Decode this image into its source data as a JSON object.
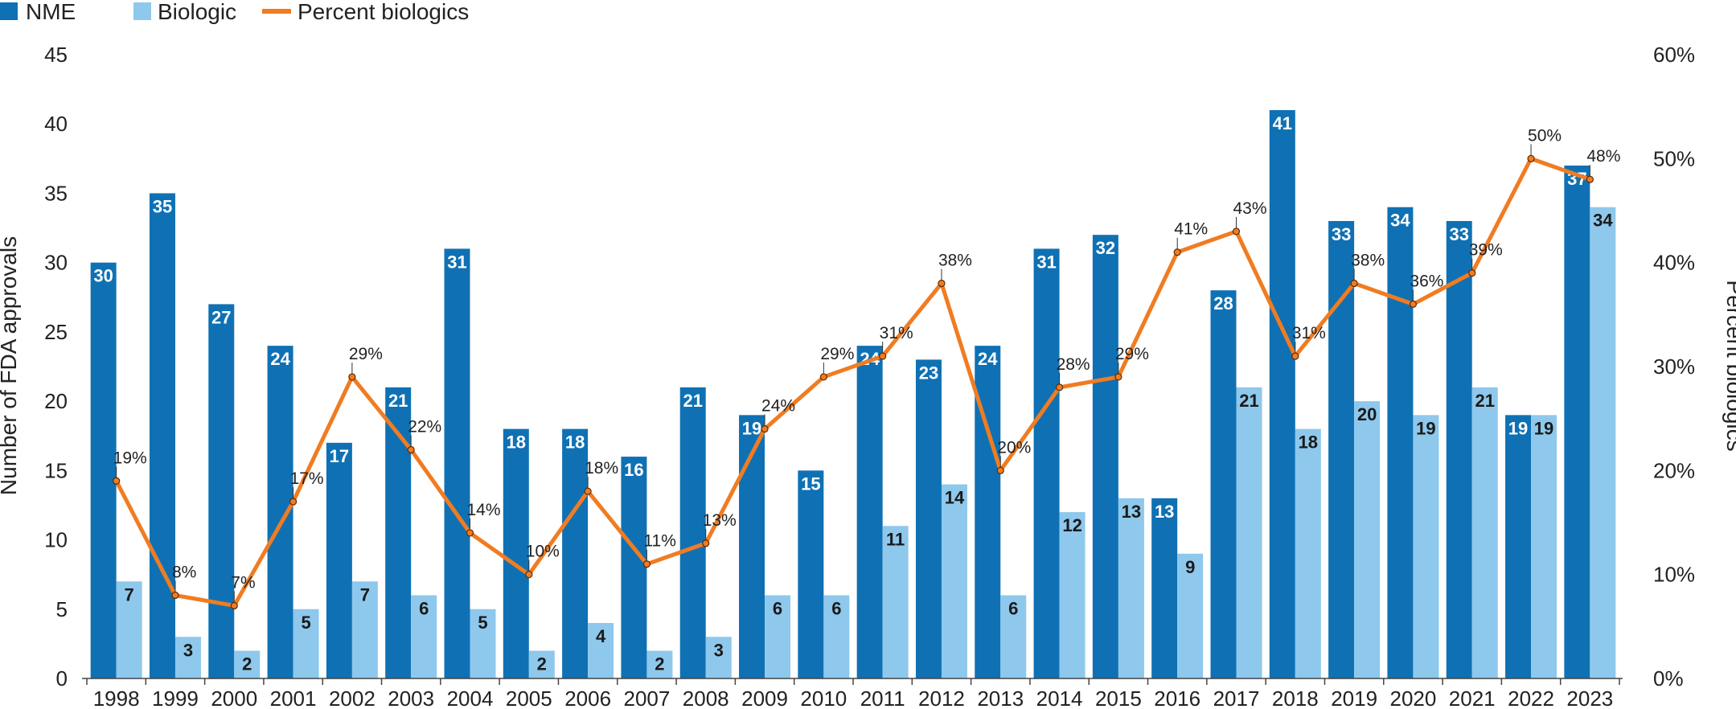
{
  "chart_data": {
    "type": "bar",
    "title": "",
    "xlabel": "",
    "ylabel": "Number of FDA approvals",
    "y2label": "Percent biologics",
    "ylim": [
      0,
      45
    ],
    "y2lim": [
      0,
      60
    ],
    "yticks": [
      "0",
      "5",
      "10",
      "15",
      "20",
      "25",
      "30",
      "35",
      "40",
      "45"
    ],
    "y2ticks": [
      "0%",
      "10%",
      "20%",
      "30%",
      "40%",
      "50%",
      "60%"
    ],
    "legend_position": "top-left",
    "categories": [
      "1998",
      "1999",
      "2000",
      "2001",
      "2002",
      "2003",
      "2004",
      "2005",
      "2006",
      "2007",
      "2008",
      "2009",
      "2010",
      "2011",
      "2012",
      "2013",
      "2014",
      "2015",
      "2016",
      "2017",
      "2018",
      "2019",
      "2020",
      "2021",
      "2022",
      "2023"
    ],
    "series": [
      {
        "name": "NME",
        "kind": "bar",
        "color": "#0f71b4",
        "label_color": "#ffffff",
        "values": [
          30,
          35,
          27,
          24,
          17,
          21,
          31,
          18,
          18,
          16,
          21,
          19,
          15,
          24,
          23,
          24,
          31,
          32,
          13,
          28,
          41,
          33,
          34,
          33,
          19,
          37
        ]
      },
      {
        "name": "Biologic",
        "kind": "bar",
        "color": "#8ec8ec",
        "label_color": "#1a1a1a",
        "values": [
          7,
          3,
          2,
          5,
          7,
          6,
          5,
          2,
          4,
          2,
          3,
          6,
          6,
          11,
          14,
          6,
          12,
          13,
          9,
          21,
          18,
          20,
          19,
          21,
          19,
          34
        ]
      },
      {
        "name": "Percent biologics",
        "kind": "line",
        "axis": "right",
        "color": "#f07c22",
        "values": [
          19,
          8,
          7,
          17,
          29,
          22,
          14,
          10,
          18,
          11,
          13,
          24,
          29,
          31,
          38,
          20,
          28,
          29,
          41,
          43,
          31,
          38,
          36,
          39,
          50,
          48
        ],
        "labels": [
          "19%",
          "8%",
          "7%",
          "17%",
          "29%",
          "22%",
          "14%",
          "10%",
          "18%",
          "11%",
          "13%",
          "24%",
          "29%",
          "31%",
          "38%",
          "20%",
          "28%",
          "29%",
          "41%",
          "43%",
          "31%",
          "38%",
          "36%",
          "39%",
          "50%",
          "48%"
        ]
      }
    ]
  }
}
